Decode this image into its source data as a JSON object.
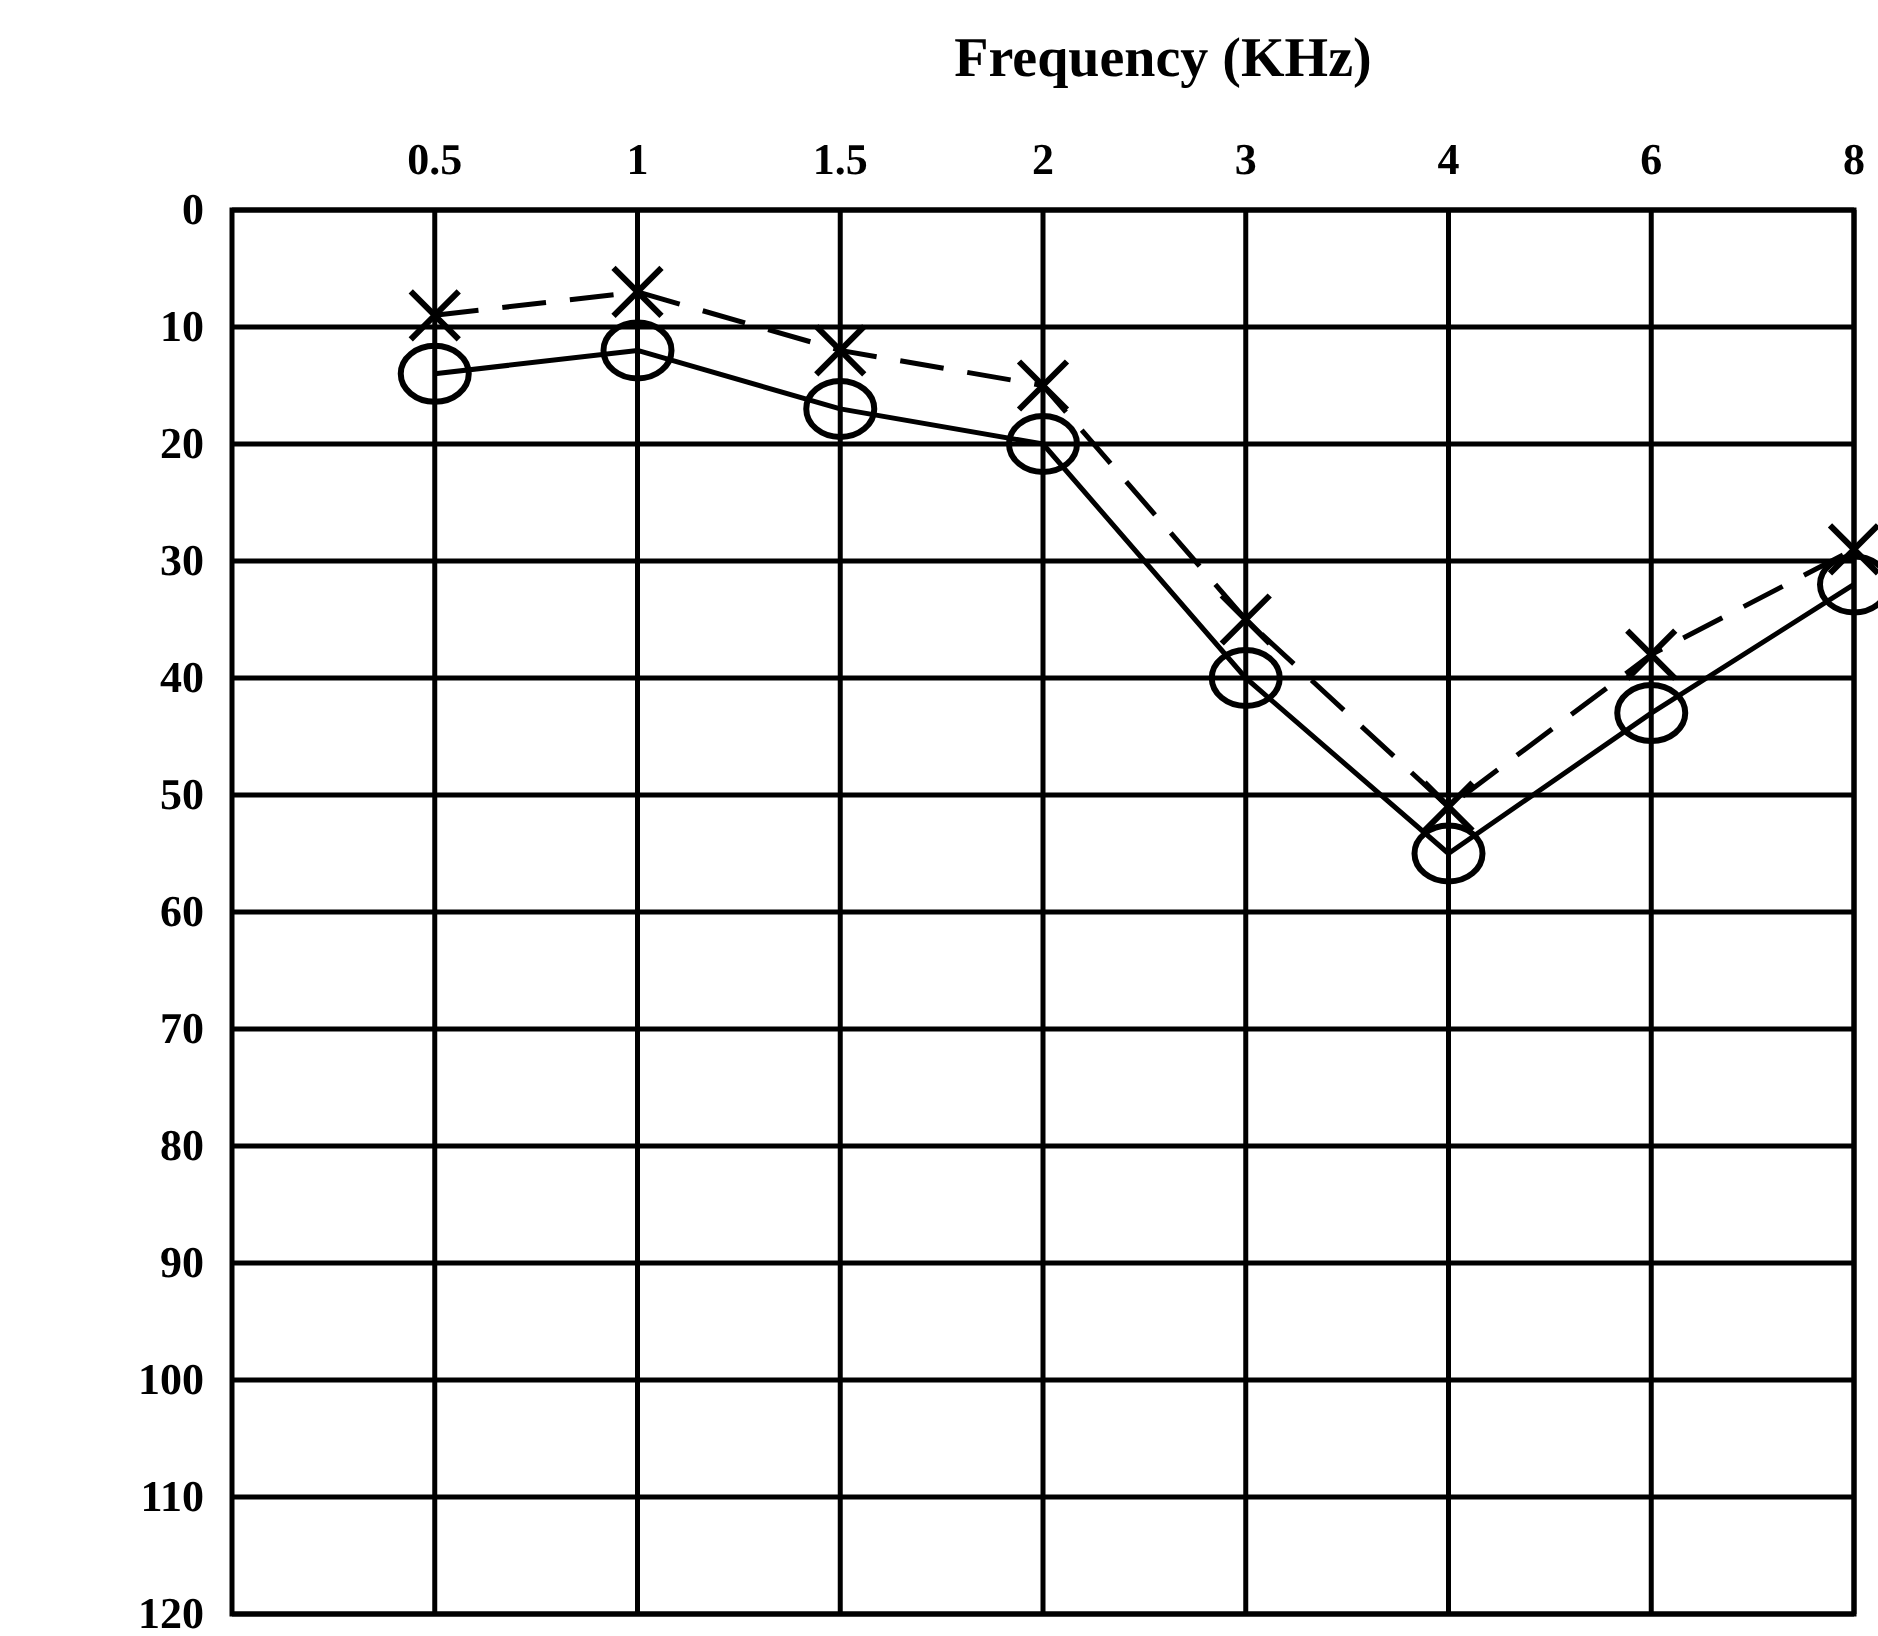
{
  "chart_data": {
    "type": "line",
    "xlabel": "Frequency (KHz)",
    "categories": [
      "0.5",
      "1",
      "1.5",
      "2",
      "3",
      "4",
      "6",
      "8"
    ],
    "ylim": [
      120,
      0
    ],
    "yticks": [
      0,
      10,
      20,
      30,
      40,
      50,
      60,
      70,
      80,
      90,
      100,
      110,
      120
    ],
    "grid": true,
    "series": [
      {
        "color": "#000000",
        "marker": "circle",
        "line_style": "solid",
        "values": [
          14,
          12,
          17,
          20,
          40,
          55,
          43,
          32
        ]
      },
      {
        "color": "#000000",
        "marker": "cross",
        "line_style": "dashed",
        "values": [
          9,
          7,
          12,
          15,
          35,
          51,
          38,
          29
        ]
      }
    ]
  }
}
